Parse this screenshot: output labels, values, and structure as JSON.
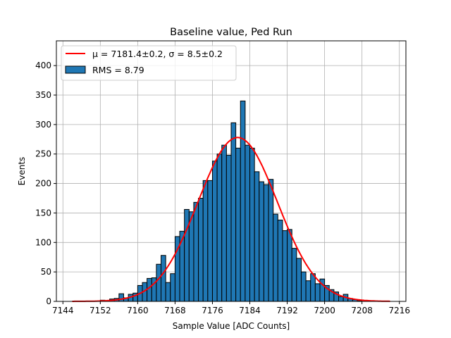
{
  "chart_data": {
    "type": "bar",
    "title": "Baseline value, Ped Run",
    "xlabel": "Sample Value [ADC Counts]",
    "ylabel": "Events",
    "xlim": [
      7142.6,
      7217.4
    ],
    "ylim": [
      0,
      442
    ],
    "xticks": [
      7144,
      7152,
      7160,
      7168,
      7176,
      7184,
      7192,
      7200,
      7208,
      7216
    ],
    "yticks": [
      0,
      50,
      100,
      150,
      200,
      250,
      300,
      350,
      400
    ],
    "grid": true,
    "legend_placement": "top-left",
    "bin_width": 1,
    "bins": [
      7152,
      7153,
      7154,
      7155,
      7156,
      7157,
      7158,
      7159,
      7160,
      7161,
      7162,
      7163,
      7164,
      7165,
      7166,
      7167,
      7168,
      7169,
      7170,
      7171,
      7172,
      7173,
      7174,
      7175,
      7176,
      7177,
      7178,
      7179,
      7180,
      7181,
      7182,
      7183,
      7184,
      7185,
      7186,
      7187,
      7188,
      7189,
      7190,
      7191,
      7192,
      7193,
      7194,
      7195,
      7196,
      7197,
      7198,
      7199,
      7200,
      7201,
      7202,
      7203,
      7204,
      7205,
      7206,
      7207
    ],
    "values": [
      2,
      1,
      4,
      5,
      13,
      6,
      12,
      14,
      27,
      32,
      39,
      40,
      63,
      78,
      32,
      47,
      110,
      119,
      156,
      152,
      168,
      175,
      205,
      205,
      238,
      250,
      265,
      248,
      303,
      260,
      340,
      265,
      260,
      220,
      203,
      198,
      207,
      148,
      138,
      120,
      122,
      90,
      73,
      50,
      35,
      47,
      30,
      38,
      27,
      20,
      16,
      8,
      12,
      5,
      3,
      1
    ],
    "bar_color": "#1f77b4",
    "fit": {
      "type": "gaussian",
      "mu": 7181.4,
      "sigma": 8.5,
      "amplitude": 278,
      "range": [
        7146,
        7214
      ],
      "color": "#ff0000"
    },
    "legend": [
      {
        "label": "μ = 7181.4±0.2, σ = 8.5±0.2",
        "kind": "line"
      },
      {
        "label": "RMS = 8.79",
        "kind": "patch"
      }
    ]
  }
}
